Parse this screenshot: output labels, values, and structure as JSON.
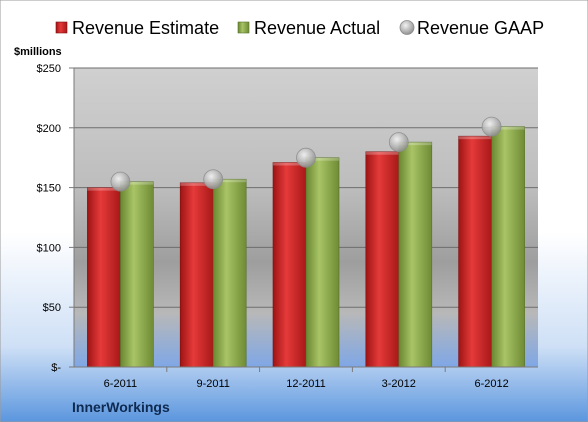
{
  "chart_data": {
    "type": "bar",
    "ylabel": "$millions",
    "categories": [
      "6-2011",
      "9-2011",
      "12-2011",
      "3-2012",
      "6-2012"
    ],
    "series": [
      {
        "name": "Revenue Estimate",
        "kind": "bar",
        "color": "#d42a2a",
        "values": [
          150,
          154,
          171,
          180,
          193
        ]
      },
      {
        "name": "Revenue Actual",
        "kind": "bar",
        "color": "#8fac4a",
        "values": [
          155,
          157,
          175,
          188,
          201
        ]
      },
      {
        "name": "Revenue GAAP",
        "kind": "marker",
        "color": "#b8b8b8",
        "values": [
          155,
          157,
          175,
          188,
          201
        ]
      }
    ],
    "ylim": [
      0,
      250
    ],
    "yticks": [
      0,
      50,
      100,
      150,
      200,
      250
    ],
    "ytick_labels": [
      "$-",
      "$50",
      "$100",
      "$150",
      "$200",
      "$250"
    ],
    "grid": true,
    "legend": "top",
    "footer_label": "InnerWorkings"
  }
}
